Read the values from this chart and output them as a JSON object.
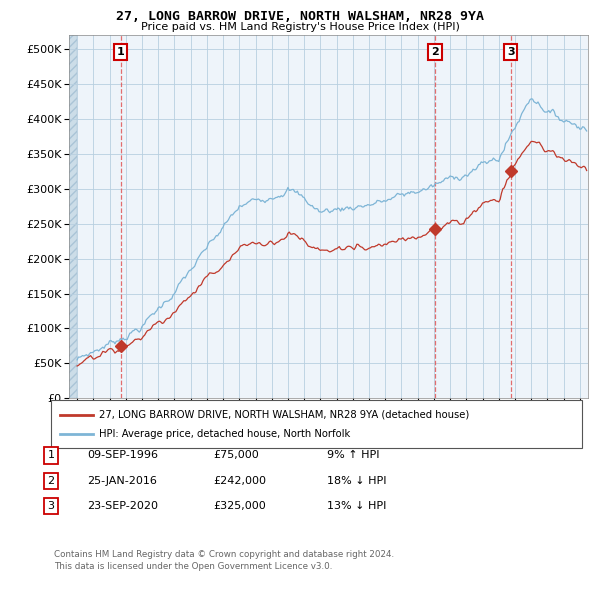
{
  "title": "27, LONG BARROW DRIVE, NORTH WALSHAM, NR28 9YA",
  "subtitle": "Price paid vs. HM Land Registry's House Price Index (HPI)",
  "legend_line1": "27, LONG BARROW DRIVE, NORTH WALSHAM, NR28 9YA (detached house)",
  "legend_line2": "HPI: Average price, detached house, North Norfolk",
  "transactions": [
    {
      "num": 1,
      "date": "09-SEP-1996",
      "price": 75000,
      "pct": "9%",
      "dir": "↑",
      "year": 1996.69
    },
    {
      "num": 2,
      "date": "25-JAN-2016",
      "price": 242000,
      "pct": "18%",
      "dir": "↓",
      "year": 2016.07
    },
    {
      "num": 3,
      "date": "23-SEP-2020",
      "price": 325000,
      "pct": "13%",
      "dir": "↓",
      "year": 2020.73
    }
  ],
  "footer1": "Contains HM Land Registry data © Crown copyright and database right 2024.",
  "footer2": "This data is licensed under the Open Government Licence v3.0.",
  "hpi_color": "#7eb5d6",
  "price_color": "#c0392b",
  "marker_color": "#c0392b",
  "dashed_color": "#e05555",
  "ylim": [
    0,
    520000
  ],
  "yticks": [
    0,
    50000,
    100000,
    150000,
    200000,
    250000,
    300000,
    350000,
    400000,
    450000,
    500000
  ],
  "xmin": 1993.5,
  "xmax": 2025.5
}
